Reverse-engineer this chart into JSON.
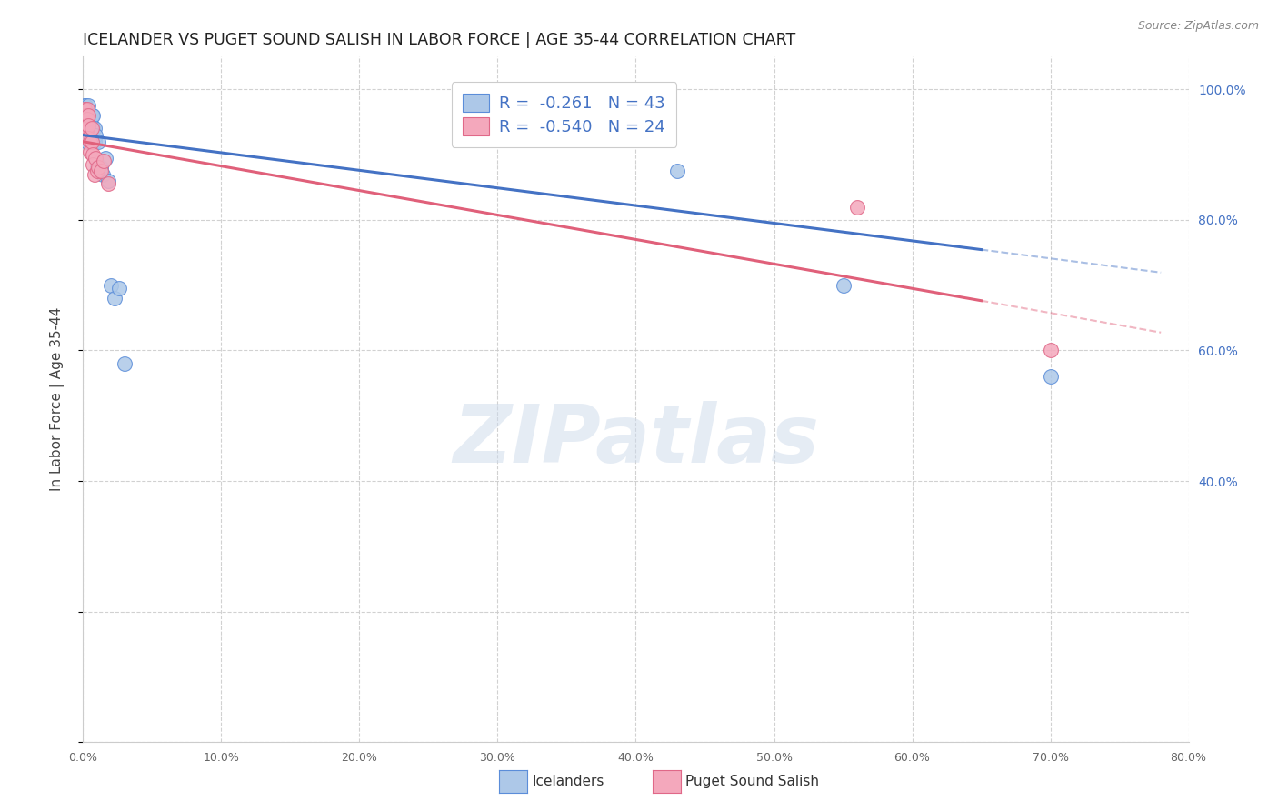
{
  "title": "ICELANDER VS PUGET SOUND SALISH IN LABOR FORCE | AGE 35-44 CORRELATION CHART",
  "source": "Source: ZipAtlas.com",
  "ylabel": "In Labor Force | Age 35-44",
  "xlim": [
    0.0,
    0.8
  ],
  "ylim": [
    0.0,
    1.05
  ],
  "R_blue": -0.261,
  "N_blue": 43,
  "R_pink": -0.54,
  "N_pink": 24,
  "blue_scatter_color": "#adc8e8",
  "pink_scatter_color": "#f4a8bc",
  "blue_edge_color": "#5b8dd9",
  "pink_edge_color": "#e06888",
  "blue_line_color": "#4472c4",
  "pink_line_color": "#e0607a",
  "right_axis_color": "#4472c4",
  "icelanders_x": [
    0.001,
    0.001,
    0.002,
    0.002,
    0.002,
    0.002,
    0.003,
    0.003,
    0.003,
    0.003,
    0.003,
    0.004,
    0.004,
    0.004,
    0.004,
    0.004,
    0.005,
    0.005,
    0.005,
    0.005,
    0.006,
    0.006,
    0.006,
    0.007,
    0.007,
    0.007,
    0.008,
    0.008,
    0.009,
    0.01,
    0.011,
    0.012,
    0.013,
    0.014,
    0.016,
    0.018,
    0.02,
    0.023,
    0.026,
    0.03,
    0.43,
    0.55,
    0.7
  ],
  "icelanders_y": [
    0.975,
    0.96,
    0.975,
    0.965,
    0.95,
    0.935,
    0.97,
    0.96,
    0.95,
    0.935,
    0.92,
    0.975,
    0.96,
    0.95,
    0.94,
    0.925,
    0.96,
    0.95,
    0.94,
    0.925,
    0.96,
    0.945,
    0.93,
    0.96,
    0.94,
    0.92,
    0.94,
    0.92,
    0.93,
    0.88,
    0.92,
    0.875,
    0.88,
    0.87,
    0.895,
    0.86,
    0.7,
    0.68,
    0.695,
    0.58,
    0.875,
    0.7,
    0.56
  ],
  "salish_x": [
    0.001,
    0.002,
    0.002,
    0.003,
    0.003,
    0.003,
    0.004,
    0.004,
    0.004,
    0.005,
    0.005,
    0.006,
    0.006,
    0.007,
    0.007,
    0.008,
    0.009,
    0.01,
    0.011,
    0.013,
    0.015,
    0.018,
    0.56,
    0.7
  ],
  "salish_y": [
    0.97,
    0.96,
    0.945,
    0.97,
    0.955,
    0.94,
    0.96,
    0.945,
    0.925,
    0.92,
    0.905,
    0.94,
    0.92,
    0.9,
    0.885,
    0.87,
    0.895,
    0.875,
    0.88,
    0.875,
    0.89,
    0.855,
    0.82,
    0.6
  ],
  "watermark_text": "ZIPatlas",
  "legend_label1": "Icelanders",
  "legend_label2": "Puget Sound Salish"
}
